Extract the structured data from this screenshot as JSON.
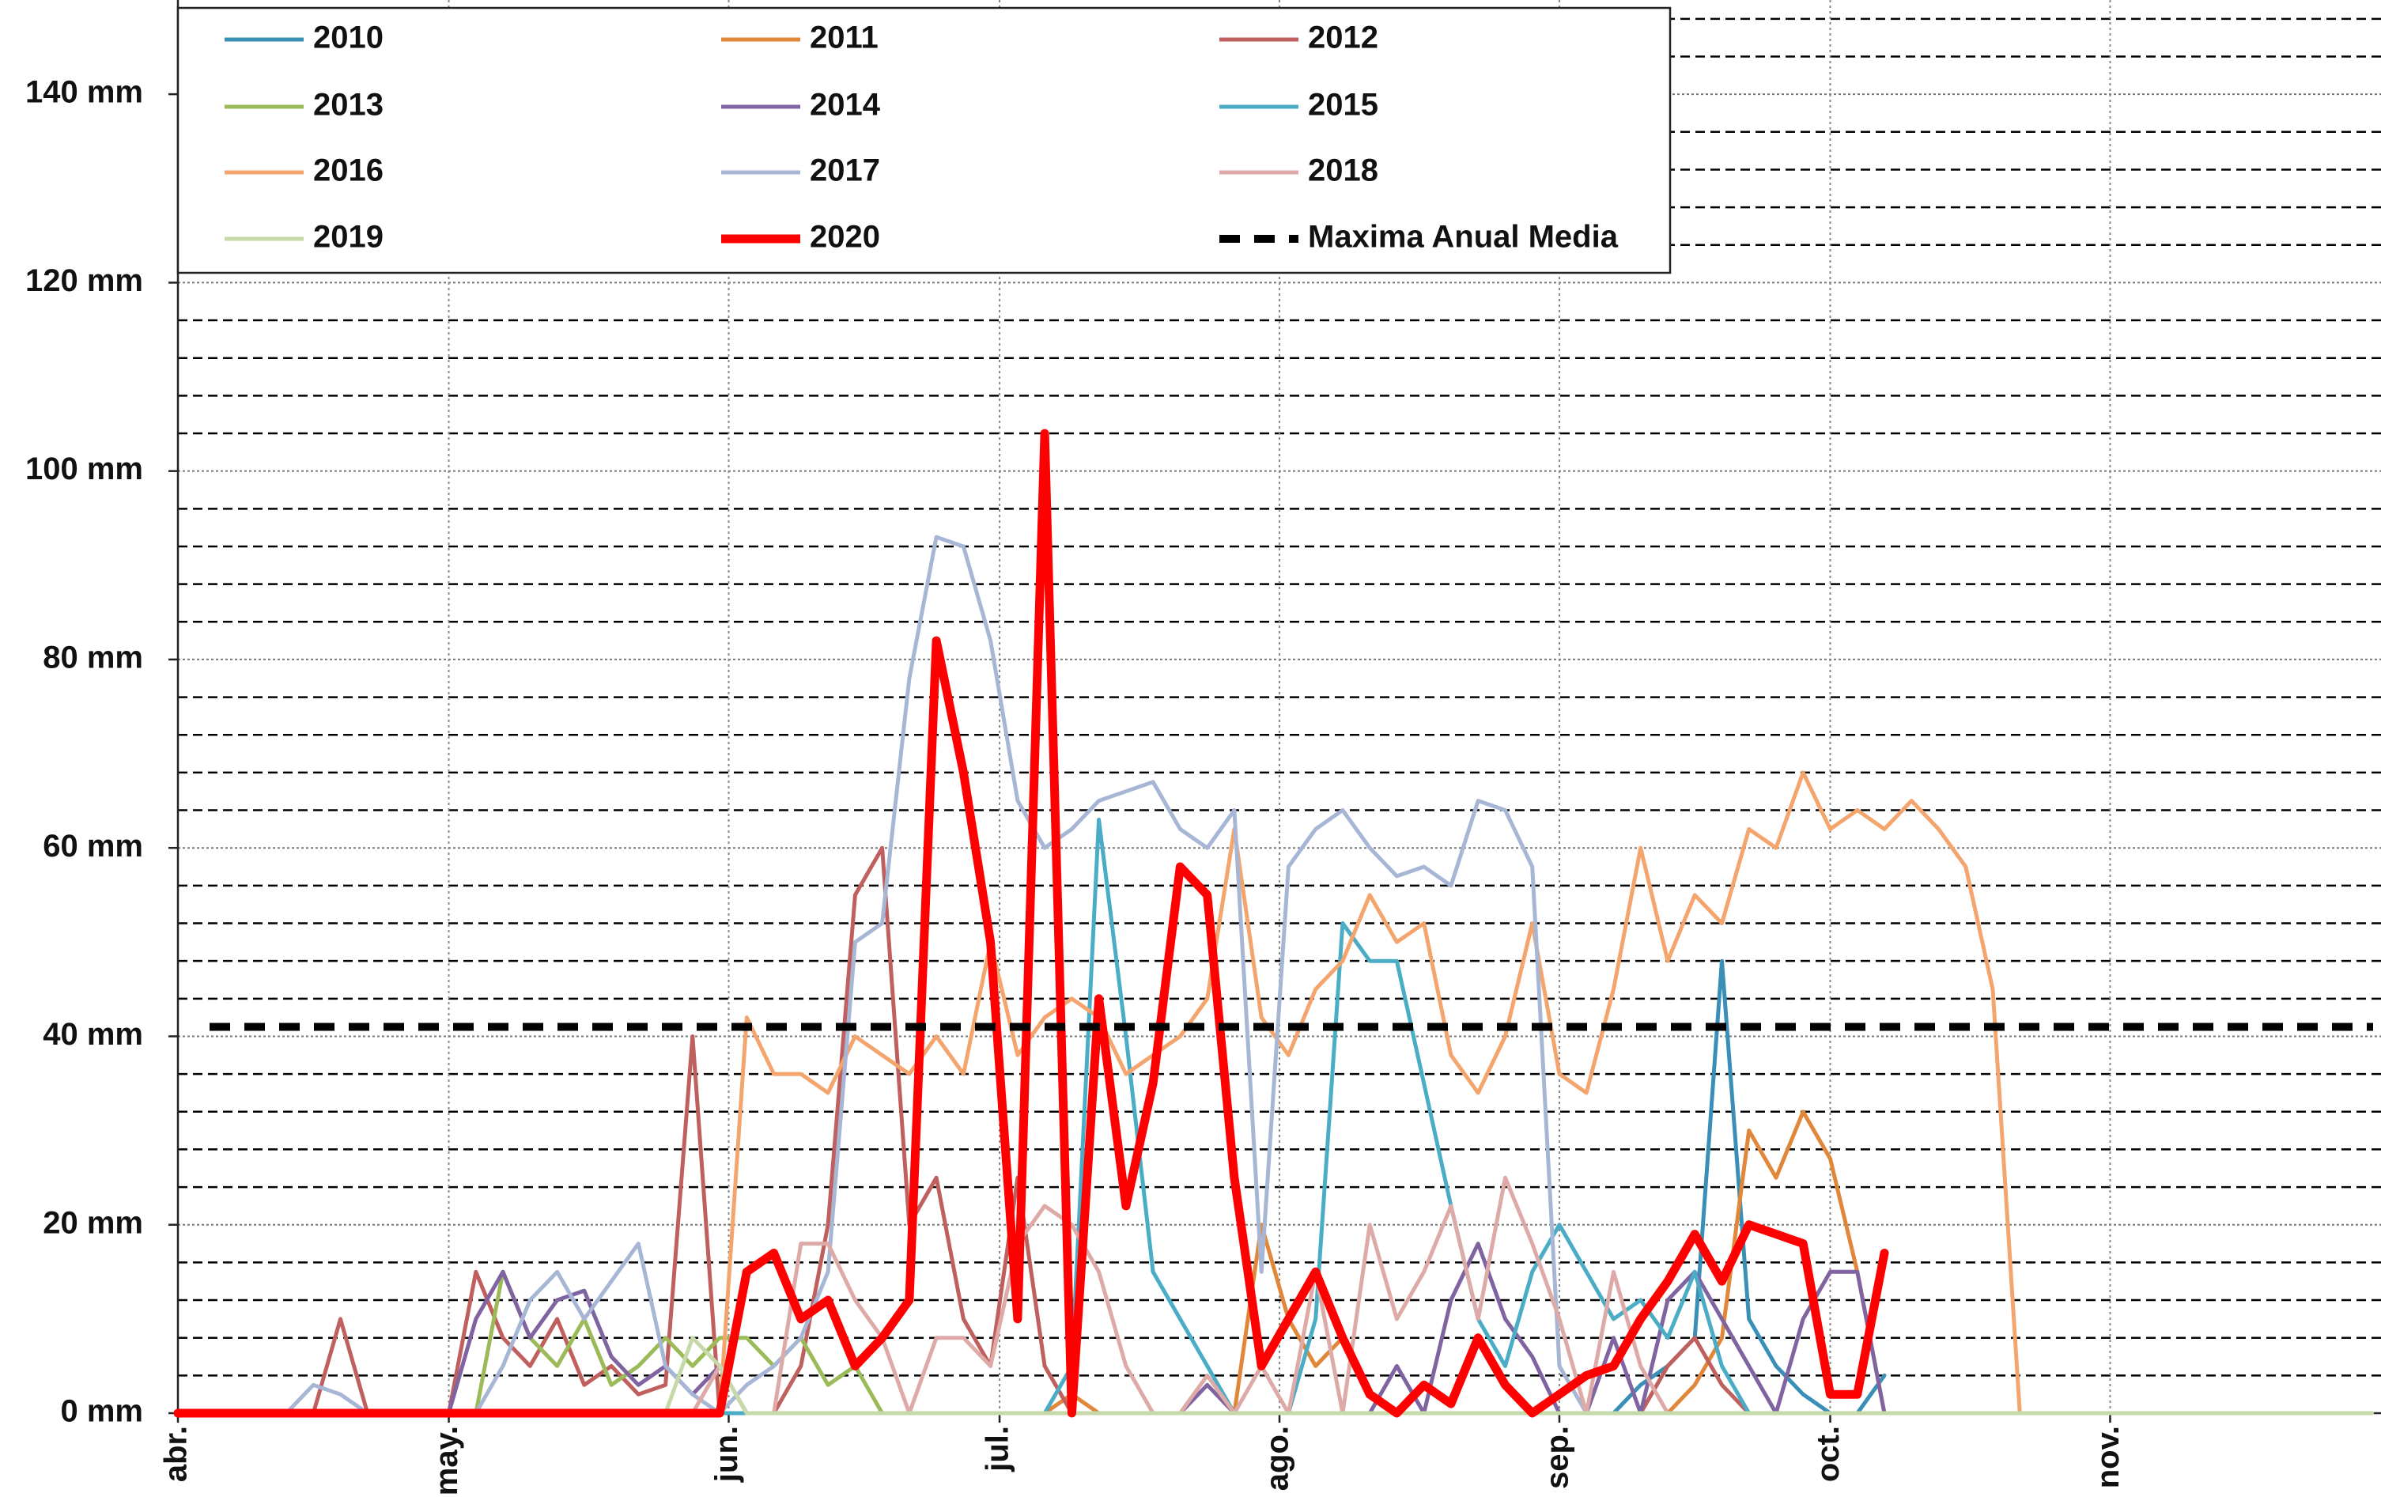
{
  "chart_data": {
    "type": "line",
    "x": [
      0,
      3,
      6,
      9,
      12,
      15,
      18,
      21,
      24,
      27,
      30,
      33,
      36,
      39,
      42,
      45,
      48,
      51,
      54,
      57,
      60,
      63,
      66,
      69,
      72,
      75,
      78,
      81,
      84,
      87,
      90,
      93,
      96,
      99,
      102,
      105,
      108,
      111,
      114,
      117,
      120,
      123,
      126,
      129,
      132,
      135,
      138,
      141,
      144,
      147,
      150,
      153,
      156,
      159,
      162,
      165,
      168,
      171,
      174,
      177,
      180,
      183,
      186,
      189,
      192,
      195,
      198,
      201,
      204,
      207,
      210,
      213,
      216,
      219,
      222,
      225,
      228,
      231,
      234,
      237,
      240,
      243
    ],
    "xlim": [
      0,
      244
    ],
    "xticks": [
      {
        "value": 0,
        "label": "abr."
      },
      {
        "value": 30,
        "label": "may."
      },
      {
        "value": 61,
        "label": "jun."
      },
      {
        "value": 91,
        "label": "jul."
      },
      {
        "value": 122,
        "label": "ago."
      },
      {
        "value": 153,
        "label": "sep."
      },
      {
        "value": 183,
        "label": "oct."
      },
      {
        "value": 214,
        "label": "nov."
      }
    ],
    "ylim": [
      0,
      150
    ],
    "yticks": [
      {
        "value": 0,
        "label": "0 mm"
      },
      {
        "value": 20,
        "label": "20 mm"
      },
      {
        "value": 40,
        "label": "40 mm"
      },
      {
        "value": 60,
        "label": "60 mm"
      },
      {
        "value": 80,
        "label": "80 mm"
      },
      {
        "value": 100,
        "label": "100 mm"
      },
      {
        "value": 120,
        "label": "120 mm"
      },
      {
        "value": 140,
        "label": "140 mm"
      }
    ],
    "yminorticks": [
      4,
      8,
      12,
      16,
      24,
      28,
      32,
      36,
      44,
      48,
      52,
      56,
      64,
      68,
      72,
      76,
      84,
      88,
      92,
      96,
      104,
      108,
      112,
      116,
      124,
      128,
      132,
      136,
      144,
      148
    ],
    "grid": true,
    "legend": "top-left",
    "series": [
      {
        "name": "2010",
        "color": "#3a8fb7",
        "values": [
          0,
          0,
          0,
          0,
          0,
          0,
          0,
          0,
          0,
          0,
          0,
          0,
          0,
          0,
          0,
          0,
          0,
          0,
          0,
          0,
          0,
          0,
          0,
          0,
          0,
          0,
          0,
          0,
          0,
          0,
          0,
          0,
          0,
          0,
          0,
          0,
          0,
          0,
          0,
          0,
          0,
          0,
          0,
          0,
          0,
          0,
          0,
          0,
          0,
          0,
          0,
          0,
          0,
          0,
          3,
          5,
          8,
          48,
          10,
          5,
          2,
          0,
          0,
          4,
          null,
          null,
          null,
          null,
          null,
          null,
          null,
          null,
          null,
          null,
          null,
          null,
          null,
          null,
          null,
          null,
          null,
          null
        ]
      },
      {
        "name": "2011",
        "color": "#e0873a",
        "values": [
          0,
          0,
          0,
          0,
          0,
          0,
          0,
          0,
          0,
          0,
          0,
          0,
          0,
          0,
          0,
          0,
          0,
          0,
          0,
          0,
          0,
          0,
          0,
          0,
          0,
          0,
          0,
          0,
          0,
          0,
          0,
          0,
          0,
          2,
          0,
          0,
          0,
          0,
          0,
          0,
          20,
          10,
          5,
          8,
          2,
          0,
          0,
          0,
          0,
          0,
          0,
          0,
          0,
          0,
          0,
          0,
          3,
          8,
          30,
          25,
          32,
          27,
          15,
          0,
          null,
          null,
          null,
          null,
          null,
          null,
          null,
          null,
          null,
          null,
          null,
          null,
          null,
          null,
          null,
          null,
          null,
          null
        ]
      },
      {
        "name": "2012",
        "color": "#c0605e",
        "values": [
          0,
          0,
          0,
          0,
          0,
          0,
          10,
          0,
          0,
          0,
          0,
          15,
          8,
          5,
          10,
          3,
          5,
          2,
          3,
          40,
          0,
          0,
          0,
          5,
          20,
          55,
          60,
          20,
          25,
          10,
          5,
          25,
          5,
          0,
          0,
          0,
          0,
          0,
          0,
          0,
          0,
          0,
          0,
          0,
          0,
          0,
          0,
          0,
          0,
          0,
          0,
          0,
          0,
          0,
          0,
          5,
          8,
          3,
          0,
          0,
          0,
          0,
          0,
          0,
          null,
          null,
          null,
          null,
          null,
          null,
          null,
          null,
          null,
          null,
          null,
          null,
          null,
          null,
          null,
          null,
          null,
          null
        ]
      },
      {
        "name": "2013",
        "color": "#9bbb59",
        "values": [
          0,
          0,
          0,
          0,
          0,
          0,
          0,
          0,
          0,
          0,
          0,
          0,
          15,
          8,
          5,
          10,
          3,
          5,
          8,
          5,
          8,
          8,
          5,
          8,
          3,
          5,
          0,
          0,
          0,
          0,
          0,
          0,
          0,
          0,
          0,
          0,
          0,
          0,
          0,
          0,
          0,
          0,
          0,
          0,
          0,
          0,
          0,
          0,
          0,
          0,
          0,
          0,
          0,
          0,
          0,
          0,
          0,
          0,
          0,
          0,
          0,
          0,
          0,
          0,
          null,
          null,
          null,
          null,
          null,
          null,
          null,
          null,
          null,
          null,
          null,
          null,
          null,
          null,
          null,
          null,
          null,
          null
        ]
      },
      {
        "name": "2014",
        "color": "#8064a2",
        "values": [
          0,
          0,
          0,
          0,
          0,
          0,
          0,
          0,
          0,
          0,
          0,
          10,
          15,
          8,
          12,
          13,
          6,
          3,
          5,
          2,
          5,
          0,
          0,
          0,
          0,
          0,
          0,
          0,
          0,
          0,
          0,
          0,
          0,
          0,
          0,
          0,
          0,
          0,
          3,
          0,
          0,
          0,
          0,
          0,
          0,
          5,
          0,
          12,
          18,
          10,
          6,
          0,
          0,
          8,
          0,
          12,
          15,
          10,
          5,
          0,
          10,
          15,
          15,
          0,
          null,
          null,
          null,
          null,
          null,
          null,
          null,
          null,
          null,
          null,
          null,
          null,
          null,
          null,
          null,
          null,
          null,
          null
        ]
      },
      {
        "name": "2015",
        "color": "#4bacc6",
        "values": [
          0,
          0,
          0,
          0,
          0,
          0,
          0,
          0,
          0,
          0,
          0,
          0,
          0,
          0,
          0,
          0,
          0,
          0,
          0,
          0,
          0,
          0,
          0,
          0,
          0,
          0,
          0,
          0,
          0,
          0,
          0,
          0,
          0,
          5,
          63,
          40,
          15,
          10,
          5,
          0,
          0,
          0,
          10,
          52,
          48,
          48,
          35,
          22,
          10,
          5,
          15,
          20,
          15,
          10,
          12,
          8,
          15,
          5,
          0,
          0,
          0,
          0,
          0,
          0,
          null,
          null,
          null,
          null,
          null,
          null,
          null,
          null,
          null,
          null,
          null,
          null,
          null,
          null,
          null,
          null,
          null,
          null
        ]
      },
      {
        "name": "2016",
        "color": "#f4a56e",
        "values": [
          0,
          0,
          0,
          0,
          0,
          0,
          0,
          0,
          0,
          0,
          0,
          0,
          0,
          0,
          0,
          0,
          0,
          0,
          0,
          0,
          0,
          42,
          36,
          36,
          34,
          40,
          38,
          36,
          40,
          36,
          50,
          38,
          42,
          44,
          42,
          36,
          38,
          40,
          44,
          62,
          42,
          38,
          45,
          48,
          55,
          50,
          52,
          38,
          34,
          40,
          52,
          36,
          34,
          45,
          60,
          48,
          55,
          52,
          62,
          60,
          68,
          62,
          64,
          62,
          65,
          62,
          58,
          45,
          0,
          null,
          null,
          null,
          null,
          null,
          null,
          null,
          null,
          null,
          null,
          null,
          null,
          null
        ]
      },
      {
        "name": "2017",
        "color": "#a8b6d6",
        "values": [
          0,
          0,
          0,
          0,
          0,
          3,
          2,
          0,
          0,
          0,
          0,
          0,
          5,
          12,
          15,
          10,
          14,
          18,
          5,
          2,
          0,
          3,
          5,
          8,
          15,
          50,
          52,
          78,
          93,
          92,
          82,
          65,
          60,
          62,
          65,
          66,
          67,
          62,
          60,
          64,
          15,
          58,
          62,
          64,
          60,
          57,
          58,
          56,
          65,
          64,
          58,
          5,
          0,
          0,
          0,
          0,
          0,
          0,
          0,
          0,
          0,
          0,
          0,
          0,
          null,
          null,
          null,
          null,
          null,
          null,
          null,
          null,
          null,
          null,
          null,
          null,
          null,
          null,
          null,
          null,
          null,
          null
        ]
      },
      {
        "name": "2018",
        "color": "#deaaa8",
        "values": [
          0,
          0,
          0,
          0,
          0,
          0,
          0,
          0,
          0,
          0,
          0,
          0,
          0,
          0,
          0,
          0,
          0,
          0,
          0,
          0,
          5,
          0,
          0,
          18,
          18,
          12,
          8,
          0,
          8,
          8,
          5,
          18,
          22,
          20,
          15,
          5,
          0,
          0,
          4,
          0,
          5,
          0,
          15,
          0,
          20,
          10,
          15,
          22,
          10,
          25,
          18,
          10,
          0,
          15,
          5,
          0,
          0,
          0,
          0,
          0,
          0,
          0,
          0,
          0,
          null,
          null,
          null,
          null,
          null,
          null,
          null,
          null,
          null,
          null,
          null,
          null,
          null,
          null,
          null,
          null,
          null,
          null
        ]
      },
      {
        "name": "2019",
        "color": "#c5daa8",
        "values": [
          0,
          0,
          0,
          0,
          0,
          0,
          0,
          0,
          0,
          0,
          0,
          0,
          0,
          0,
          0,
          0,
          0,
          0,
          0,
          8,
          5,
          0,
          0,
          0,
          0,
          0,
          0,
          0,
          0,
          0,
          0,
          0,
          0,
          0,
          0,
          0,
          0,
          0,
          0,
          0,
          0,
          0,
          0,
          0,
          0,
          0,
          0,
          0,
          0,
          0,
          0,
          0,
          0,
          0,
          0,
          0,
          0,
          0,
          0,
          0,
          0,
          0,
          0,
          0,
          0,
          0,
          0,
          0,
          0,
          0,
          0,
          0,
          0,
          0,
          0,
          0,
          0,
          0,
          0,
          0,
          0,
          0
        ]
      },
      {
        "name": "2020",
        "color": "#ff0000",
        "thick": true,
        "values": [
          0,
          0,
          0,
          0,
          0,
          0,
          0,
          0,
          0,
          0,
          0,
          0,
          0,
          0,
          0,
          0,
          0,
          0,
          0,
          0,
          0,
          15,
          17,
          10,
          12,
          5,
          8,
          12,
          82,
          68,
          50,
          10,
          104,
          0,
          44,
          22,
          35,
          58,
          55,
          25,
          5,
          10,
          15,
          8,
          2,
          0,
          3,
          1,
          8,
          3,
          0,
          2,
          4,
          5,
          10,
          14,
          19,
          14,
          20,
          19,
          18,
          2,
          2,
          17,
          null,
          null,
          null,
          null,
          null,
          null,
          null,
          null,
          null,
          null,
          null,
          null,
          null,
          null,
          null,
          null,
          null,
          null
        ]
      },
      {
        "name": "Maxima Anual Media",
        "color": "#000000",
        "dashed": true,
        "value": 41
      }
    ]
  }
}
